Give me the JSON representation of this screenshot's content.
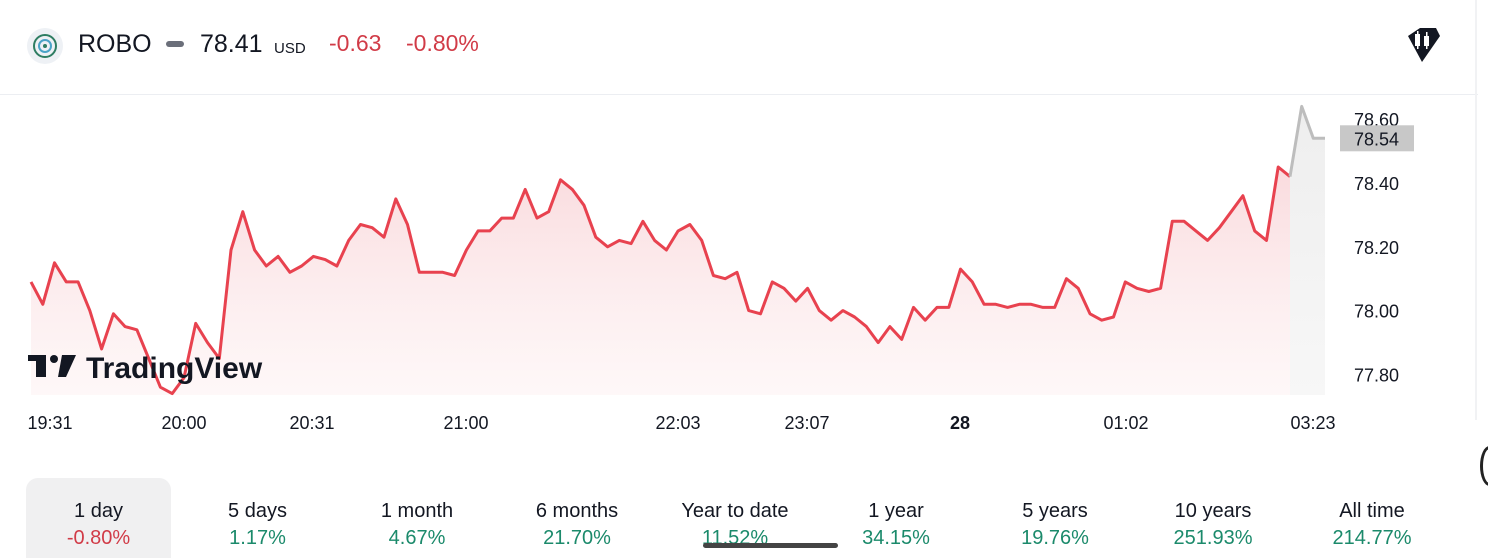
{
  "header": {
    "symbol": "ROBO",
    "price": "78.41",
    "currency": "USD",
    "change": "-0.63",
    "change_pct": "-0.80%"
  },
  "watermark": "TradingView",
  "colors": {
    "down": "#d13b47",
    "up": "#1b8a6b",
    "line": "#e8424f",
    "after_hours": "#bdbdbd"
  },
  "chart_data": {
    "type": "line",
    "title": "",
    "xlabel": "",
    "ylabel": "",
    "ylim": [
      77.72,
      78.66
    ],
    "y_ticks": [
      "78.60",
      "78.40",
      "78.20",
      "78.00",
      "77.80"
    ],
    "last_value_label": "78.54",
    "x_ticks": [
      {
        "label": "19:31",
        "bold": false
      },
      {
        "label": "20:00",
        "bold": false
      },
      {
        "label": "20:31",
        "bold": false
      },
      {
        "label": "21:00",
        "bold": false
      },
      {
        "label": "22:03",
        "bold": false
      },
      {
        "label": "23:07",
        "bold": false
      },
      {
        "label": "28",
        "bold": true
      },
      {
        "label": "01:02",
        "bold": false
      },
      {
        "label": "03:23",
        "bold": false
      }
    ],
    "series": [
      {
        "values": [
          78.09,
          78.02,
          78.15,
          78.09,
          78.09,
          78.0,
          77.88,
          77.99,
          77.95,
          77.94,
          77.85,
          77.76,
          77.74,
          77.79,
          77.96,
          77.9,
          77.85,
          78.19,
          78.31,
          78.19,
          78.14,
          78.17,
          78.12,
          78.14,
          78.17,
          78.16,
          78.14,
          78.22,
          78.27,
          78.26,
          78.23,
          78.35,
          78.27,
          78.12,
          78.12,
          78.12,
          78.11,
          78.19,
          78.25,
          78.25,
          78.29,
          78.29,
          78.38,
          78.29,
          78.31,
          78.41,
          78.38,
          78.33,
          78.23,
          78.2,
          78.22,
          78.21,
          78.28,
          78.22,
          78.19,
          78.25,
          78.27,
          78.22,
          78.11,
          78.1,
          78.12,
          78.0,
          77.99,
          78.09,
          78.07,
          78.03,
          78.07,
          78.0,
          77.97,
          78.0,
          77.98,
          77.95,
          77.9,
          77.95,
          77.91,
          78.01,
          77.97,
          78.01,
          78.01,
          78.13,
          78.09,
          78.02,
          78.02,
          78.01,
          78.02,
          78.02,
          78.01,
          78.01,
          78.1,
          78.07,
          77.99,
          77.97,
          77.98,
          78.09,
          78.07,
          78.06,
          78.07,
          78.28,
          78.28,
          78.25,
          78.22,
          78.26,
          78.31,
          78.36,
          78.25,
          78.22,
          78.45,
          78.42
        ]
      },
      {
        "name": "after hours",
        "values": [
          78.42,
          78.64,
          78.54,
          78.54
        ]
      }
    ]
  },
  "ranges": [
    {
      "label": "1 day",
      "value": "-0.80%",
      "dir": "neg",
      "active": true
    },
    {
      "label": "5 days",
      "value": "1.17%",
      "dir": "pos"
    },
    {
      "label": "1 month",
      "value": "4.67%",
      "dir": "pos"
    },
    {
      "label": "6 months",
      "value": "21.70%",
      "dir": "pos"
    },
    {
      "label": "Year to date",
      "value": "11.52%",
      "dir": "pos"
    },
    {
      "label": "1 year",
      "value": "34.15%",
      "dir": "pos"
    },
    {
      "label": "5 years",
      "value": "19.76%",
      "dir": "pos"
    },
    {
      "label": "10 years",
      "value": "251.93%",
      "dir": "pos"
    },
    {
      "label": "All time",
      "value": "214.77%",
      "dir": "pos"
    }
  ]
}
